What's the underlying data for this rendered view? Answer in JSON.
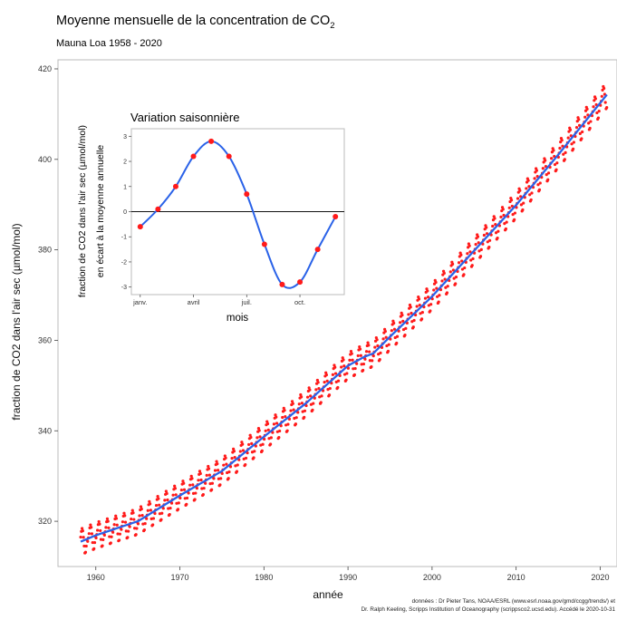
{
  "chart_data": [
    {
      "type": "scatter",
      "title": "Moyenne mensuelle de la concentration de CO",
      "title_subscript": "2",
      "subtitle": "Mauna Loa 1958 - 2020",
      "xlabel": "année",
      "ylabel": "fraction de CO2 dans l'air sec (µmol/mol)",
      "xlim": [
        1955.5,
        2022
      ],
      "ylim": [
        310,
        422
      ],
      "xticks": [
        "1960",
        "1970",
        "1980",
        "1990",
        "2000",
        "2010",
        "2020"
      ],
      "yticks": [
        "320",
        "340",
        "360",
        "380",
        "400",
        "420"
      ],
      "grid": false,
      "series": [
        {
          "kind": "monthly-points",
          "color": "#ff1a1a",
          "anchors_x": [
            1958.2,
            1960,
            1965,
            1970,
            1975,
            1980,
            1985,
            1990,
            1992,
            1993,
            1995,
            2000,
            2005,
            2010,
            2015,
            2020.8
          ],
          "anchors_y": [
            315.5,
            316.9,
            320.0,
            325.7,
            331.1,
            338.7,
            346.1,
            354.4,
            356.4,
            357.1,
            360.8,
            369.7,
            379.8,
            389.9,
            401.0,
            414.3
          ],
          "seasonal_amplitude": 3.3
        },
        {
          "kind": "trend-line",
          "color": "#2a62e8",
          "x": [
            1958.2,
            1960,
            1965,
            1970,
            1975,
            1980,
            1985,
            1990,
            1992,
            1993,
            1995,
            2000,
            2005,
            2010,
            2015,
            2020.8
          ],
          "y": [
            315.5,
            316.9,
            320.0,
            325.7,
            331.1,
            338.7,
            346.1,
            354.4,
            356.4,
            357.1,
            360.8,
            369.7,
            379.8,
            389.9,
            401.0,
            414.3
          ]
        }
      ],
      "source_lines": [
        "données : Dr Pieter Tans, NOAA/ESRL (www.esrl.noaa.gov/gmd/ccgg/trends/) et",
        "Dr. Ralph Keeling, Scripps Institution of Oceanography (scrippsco2.ucsd.edu). Accédé le 2020-10-31"
      ]
    },
    {
      "type": "line",
      "title": "Variation saisonnière",
      "xlabel": "mois",
      "ylabel_line1": "fraction de CO2 dans l'air sec (µmol/mol)",
      "ylabel_line2": "en écart à la moyenne annuelle",
      "xlim": [
        0.5,
        12.5
      ],
      "ylim": [
        -3.3,
        3.3
      ],
      "xticks": [
        {
          "month": 1,
          "label": "janv."
        },
        {
          "month": 4,
          "label": "avril"
        },
        {
          "month": 7,
          "label": "juil."
        },
        {
          "month": 10,
          "label": "oct."
        }
      ],
      "yticks": [
        "-3",
        "-2",
        "-1",
        "0",
        "1",
        "2",
        "3"
      ],
      "months": [
        1,
        2,
        3,
        4,
        5,
        6,
        7,
        8,
        9,
        10,
        11,
        12
      ],
      "values": [
        -0.6,
        0.1,
        1.0,
        2.2,
        2.8,
        2.2,
        0.7,
        -1.3,
        -2.9,
        -2.8,
        -1.5,
        -0.2
      ],
      "point_color": "#ff1a1a",
      "curve_color": "#2a62e8",
      "zero_line": true
    }
  ]
}
